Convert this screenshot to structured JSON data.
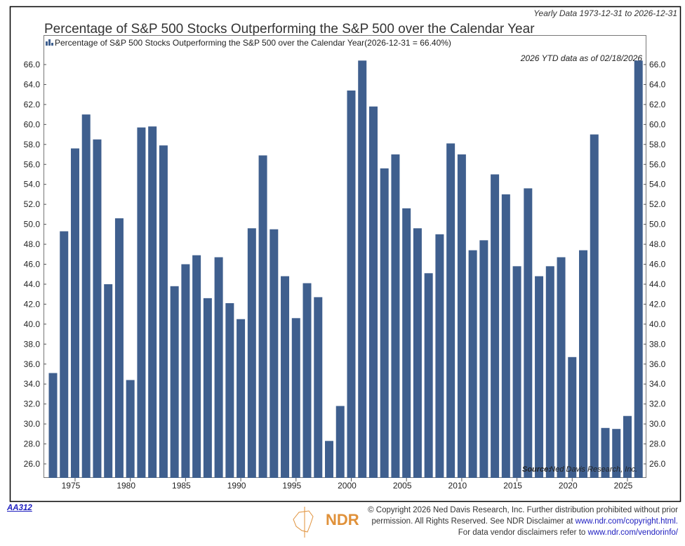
{
  "chart_data": {
    "type": "bar",
    "title": "Percentage of S&P 500 Stocks Outperforming the S&P 500 over the Calendar Year",
    "subtitle": "Yearly Data 1973-12-31 to 2026-12-31",
    "legend": "Percentage of S&P 500 Stocks Outperforming the S&P 500 over the Calendar Year(2026-12-31 = 66.40%)",
    "legend_placement": "top-left",
    "annotation": "2026 YTD data as of 02/18/2026",
    "source_label": "Source:",
    "source": "Ned Davis Research, Inc.",
    "color": "#3f5f8e",
    "ylim": [
      25,
      68.5
    ],
    "yticks": [
      "66.0",
      "64.0",
      "62.0",
      "60.0",
      "58.0",
      "56.0",
      "54.0",
      "52.0",
      "50.0",
      "48.0",
      "46.0",
      "44.0",
      "42.0",
      "40.0",
      "38.0",
      "36.0",
      "34.0",
      "32.0",
      "30.0",
      "28.0",
      "26.0"
    ],
    "xticks": [
      "1975",
      "1980",
      "1985",
      "1990",
      "1995",
      "2000",
      "2005",
      "2010",
      "2015",
      "2020",
      "2025"
    ],
    "x": [
      1973,
      1974,
      1975,
      1976,
      1977,
      1978,
      1979,
      1980,
      1981,
      1982,
      1983,
      1984,
      1985,
      1986,
      1987,
      1988,
      1989,
      1990,
      1991,
      1992,
      1993,
      1994,
      1995,
      1996,
      1997,
      1998,
      1999,
      2000,
      2001,
      2002,
      2003,
      2004,
      2005,
      2006,
      2007,
      2008,
      2009,
      2010,
      2011,
      2012,
      2013,
      2014,
      2015,
      2016,
      2017,
      2018,
      2019,
      2020,
      2021,
      2022,
      2023,
      2024,
      2025,
      2026
    ],
    "values": [
      35.1,
      49.3,
      57.6,
      61.0,
      58.5,
      44.0,
      50.6,
      34.4,
      59.7,
      59.8,
      57.9,
      43.8,
      46.0,
      46.9,
      42.6,
      46.7,
      42.1,
      40.5,
      49.6,
      56.9,
      49.5,
      44.8,
      40.6,
      44.1,
      42.7,
      28.3,
      31.8,
      63.4,
      66.4,
      61.8,
      55.6,
      57.0,
      51.6,
      49.6,
      45.1,
      49.0,
      58.1,
      57.0,
      47.4,
      48.4,
      55.0,
      53.0,
      45.8,
      53.6,
      44.8,
      45.8,
      46.7,
      36.7,
      47.4,
      59.0,
      29.6,
      29.5,
      30.8,
      66.4
    ]
  },
  "footer": {
    "code": "AA312",
    "logo": "NDR",
    "line1": "© Copyright 2026 Ned Davis Research, Inc. Further distribution prohibited without prior",
    "line2": "permission. All Rights Reserved. See NDR Disclaimer at",
    "link1": "www.ndr.com/copyright.html.",
    "line3": "For data vendor disclaimers refer to",
    "link2": "www.ndr.com/vendorinfo/"
  }
}
